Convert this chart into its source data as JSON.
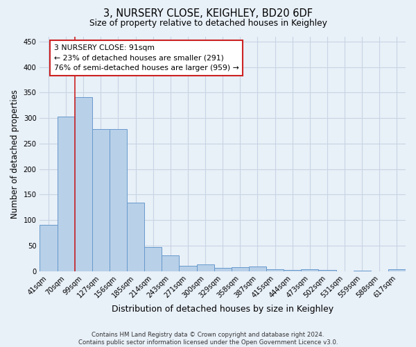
{
  "title": "3, NURSERY CLOSE, KEIGHLEY, BD20 6DF",
  "subtitle": "Size of property relative to detached houses in Keighley",
  "xlabel": "Distribution of detached houses by size in Keighley",
  "ylabel": "Number of detached properties",
  "footer": "Contains HM Land Registry data © Crown copyright and database right 2024.\nContains public sector information licensed under the Open Government Licence v3.0.",
  "categories": [
    "41sqm",
    "70sqm",
    "99sqm",
    "127sqm",
    "156sqm",
    "185sqm",
    "214sqm",
    "243sqm",
    "271sqm",
    "300sqm",
    "329sqm",
    "358sqm",
    "387sqm",
    "415sqm",
    "444sqm",
    "473sqm",
    "502sqm",
    "531sqm",
    "559sqm",
    "588sqm",
    "617sqm"
  ],
  "values": [
    91,
    303,
    341,
    278,
    278,
    134,
    47,
    31,
    10,
    13,
    7,
    8,
    9,
    3,
    2,
    3,
    2,
    0,
    1,
    0,
    3
  ],
  "bar_color": "#b8d0e8",
  "bar_edge_color": "#6699cc",
  "bg_color": "#e8f0f8",
  "grid_color": "#c8d4e4",
  "vline_color": "#cc2222",
  "annotation_text": "3 NURSERY CLOSE: 91sqm\n← 23% of detached houses are smaller (291)\n76% of semi-detached houses are larger (959) →",
  "annotation_box_color": "white",
  "annotation_box_edge": "#cc2222",
  "ylim": [
    0,
    460
  ],
  "yticks": [
    0,
    50,
    100,
    150,
    200,
    250,
    300,
    350,
    400,
    450
  ],
  "vline_x": 1.5
}
